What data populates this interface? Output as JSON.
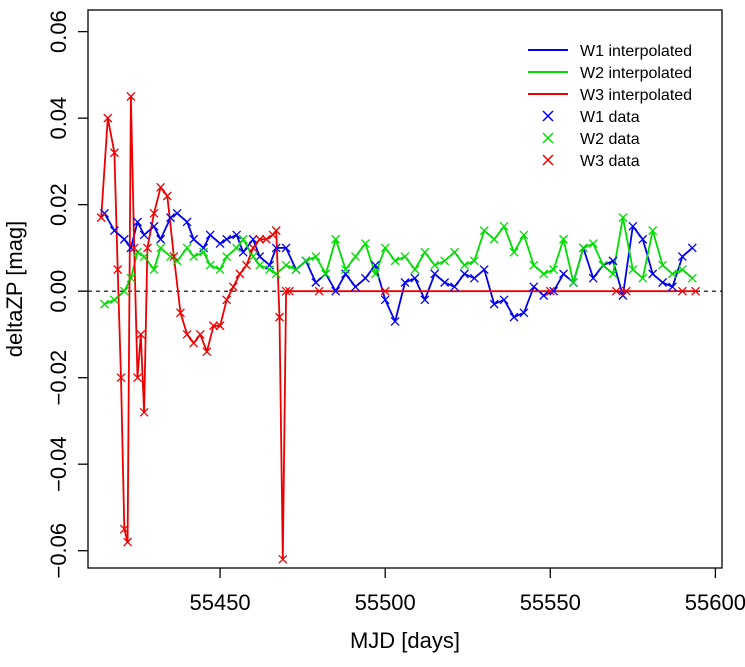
{
  "chart_data": {
    "type": "line",
    "xlabel": "MJD [days]",
    "ylabel": "deltaZP [mag]",
    "xlim": [
      55410,
      55602
    ],
    "ylim": [
      -0.064,
      0.065
    ],
    "x_ticks": [
      55450,
      55500,
      55550,
      55600
    ],
    "y_ticks": [
      -0.06,
      -0.04,
      -0.02,
      0.0,
      0.02,
      0.04,
      0.06
    ],
    "x_tick_labels": [
      "55450",
      "55500",
      "55550",
      "55600"
    ],
    "y_tick_labels": [
      "−0.06",
      "−0.04",
      "−0.02",
      "0.00",
      "0.02",
      "0.04",
      "0.06"
    ],
    "reference_line": {
      "y": 0,
      "style": "dashed"
    },
    "grid": false,
    "legend": {
      "placement": "top-right",
      "entries": [
        {
          "label": "W1 interpolated",
          "symbol": "line",
          "color": "#0000ee"
        },
        {
          "label": "W2 interpolated",
          "symbol": "line",
          "color": "#00dd00"
        },
        {
          "label": "W3 interpolated",
          "symbol": "line",
          "color": "#ee0000"
        },
        {
          "label": "W1 data",
          "symbol": "cross",
          "color": "#0000ee"
        },
        {
          "label": "W2 data",
          "symbol": "cross",
          "color": "#00dd00"
        },
        {
          "label": "W3 data",
          "symbol": "cross",
          "color": "#ee0000"
        }
      ]
    },
    "series": [
      {
        "band": "W1",
        "color": "#0000ee",
        "x": [
          55415,
          55418,
          55421,
          55423,
          55425,
          55427,
          55430,
          55432,
          55435,
          55437,
          55440,
          55442,
          55445,
          55447,
          55450,
          55452,
          55455,
          55457,
          55460,
          55462,
          55465,
          55467,
          55470,
          55473,
          55476,
          55479,
          55482,
          55485,
          55488,
          55491,
          55494,
          55497,
          55500,
          55503,
          55506,
          55509,
          55512,
          55515,
          55518,
          55521,
          55524,
          55527,
          55530,
          55533,
          55536,
          55539,
          55542,
          55545,
          55548,
          55551,
          55554,
          55557,
          55560,
          55563,
          55566,
          55569,
          55572,
          55575,
          55578,
          55581,
          55584,
          55587,
          55590,
          55593
        ],
        "y": [
          0.018,
          0.014,
          0.012,
          0.01,
          0.016,
          0.013,
          0.015,
          0.012,
          0.017,
          0.018,
          0.016,
          0.012,
          0.01,
          0.013,
          0.011,
          0.012,
          0.013,
          0.009,
          0.012,
          0.008,
          0.006,
          0.01,
          0.01,
          0.005,
          0.007,
          0.002,
          0.004,
          0.0,
          0.004,
          0.001,
          0.003,
          0.006,
          -0.002,
          -0.007,
          0.002,
          0.003,
          -0.002,
          0.004,
          0.002,
          0.001,
          0.004,
          0.003,
          0.005,
          -0.003,
          -0.002,
          -0.006,
          -0.005,
          0.001,
          -0.001,
          0.0,
          0.004,
          0.002,
          0.01,
          0.003,
          0.006,
          0.007,
          -0.001,
          0.015,
          0.012,
          0.004,
          0.002,
          0.001,
          0.008,
          0.01
        ]
      },
      {
        "band": "W2",
        "color": "#00dd00",
        "x": [
          55415,
          55418,
          55421,
          55423,
          55425,
          55427,
          55430,
          55432,
          55435,
          55437,
          55440,
          55442,
          55445,
          55447,
          55450,
          55452,
          55455,
          55457,
          55460,
          55462,
          55465,
          55467,
          55470,
          55473,
          55476,
          55479,
          55482,
          55485,
          55488,
          55491,
          55494,
          55497,
          55500,
          55503,
          55506,
          55509,
          55512,
          55515,
          55518,
          55521,
          55524,
          55527,
          55530,
          55533,
          55536,
          55539,
          55542,
          55545,
          55548,
          55551,
          55554,
          55557,
          55560,
          55563,
          55566,
          55569,
          55572,
          55575,
          55578,
          55581,
          55584,
          55587,
          55590,
          55593
        ],
        "y": [
          -0.003,
          -0.002,
          0.0,
          0.003,
          0.009,
          0.008,
          0.005,
          0.01,
          0.008,
          0.007,
          0.01,
          0.008,
          0.009,
          0.006,
          0.005,
          0.008,
          0.01,
          0.012,
          0.008,
          0.006,
          0.005,
          0.004,
          0.006,
          0.005,
          0.007,
          0.008,
          0.004,
          0.012,
          0.005,
          0.008,
          0.011,
          0.004,
          0.01,
          0.007,
          0.008,
          0.005,
          0.009,
          0.006,
          0.007,
          0.009,
          0.006,
          0.007,
          0.014,
          0.012,
          0.015,
          0.009,
          0.013,
          0.006,
          0.004,
          0.005,
          0.012,
          0.002,
          0.01,
          0.011,
          0.006,
          0.004,
          0.017,
          0.005,
          0.003,
          0.014,
          0.006,
          0.004,
          0.005,
          0.003
        ]
      },
      {
        "band": "W3",
        "color": "#ee0000",
        "x": [
          55414,
          55416,
          55418,
          55419,
          55420,
          55421,
          55422,
          55423,
          55424,
          55425,
          55426,
          55427,
          55428,
          55430,
          55432,
          55434,
          55436,
          55438,
          55440,
          55442,
          55444,
          55446,
          55448,
          55450,
          55452,
          55454,
          55456,
          55458,
          55460,
          55462,
          55464,
          55466,
          55467,
          55468,
          55469,
          55470,
          55471,
          55480,
          55500,
          55550,
          55570,
          55573,
          55590,
          55594
        ],
        "y": [
          0.017,
          0.04,
          0.032,
          0.005,
          -0.02,
          -0.055,
          -0.058,
          0.045,
          0.01,
          -0.02,
          -0.01,
          -0.028,
          0.01,
          0.018,
          0.024,
          0.022,
          0.008,
          -0.005,
          -0.01,
          -0.012,
          -0.01,
          -0.014,
          -0.008,
          -0.008,
          -0.002,
          0.001,
          0.004,
          0.006,
          0.01,
          0.012,
          0.012,
          0.013,
          0.014,
          -0.006,
          -0.062,
          0.0,
          0.0,
          0.0,
          0.0,
          0.0,
          0.0,
          0.0,
          0.0,
          0.0
        ]
      }
    ]
  }
}
